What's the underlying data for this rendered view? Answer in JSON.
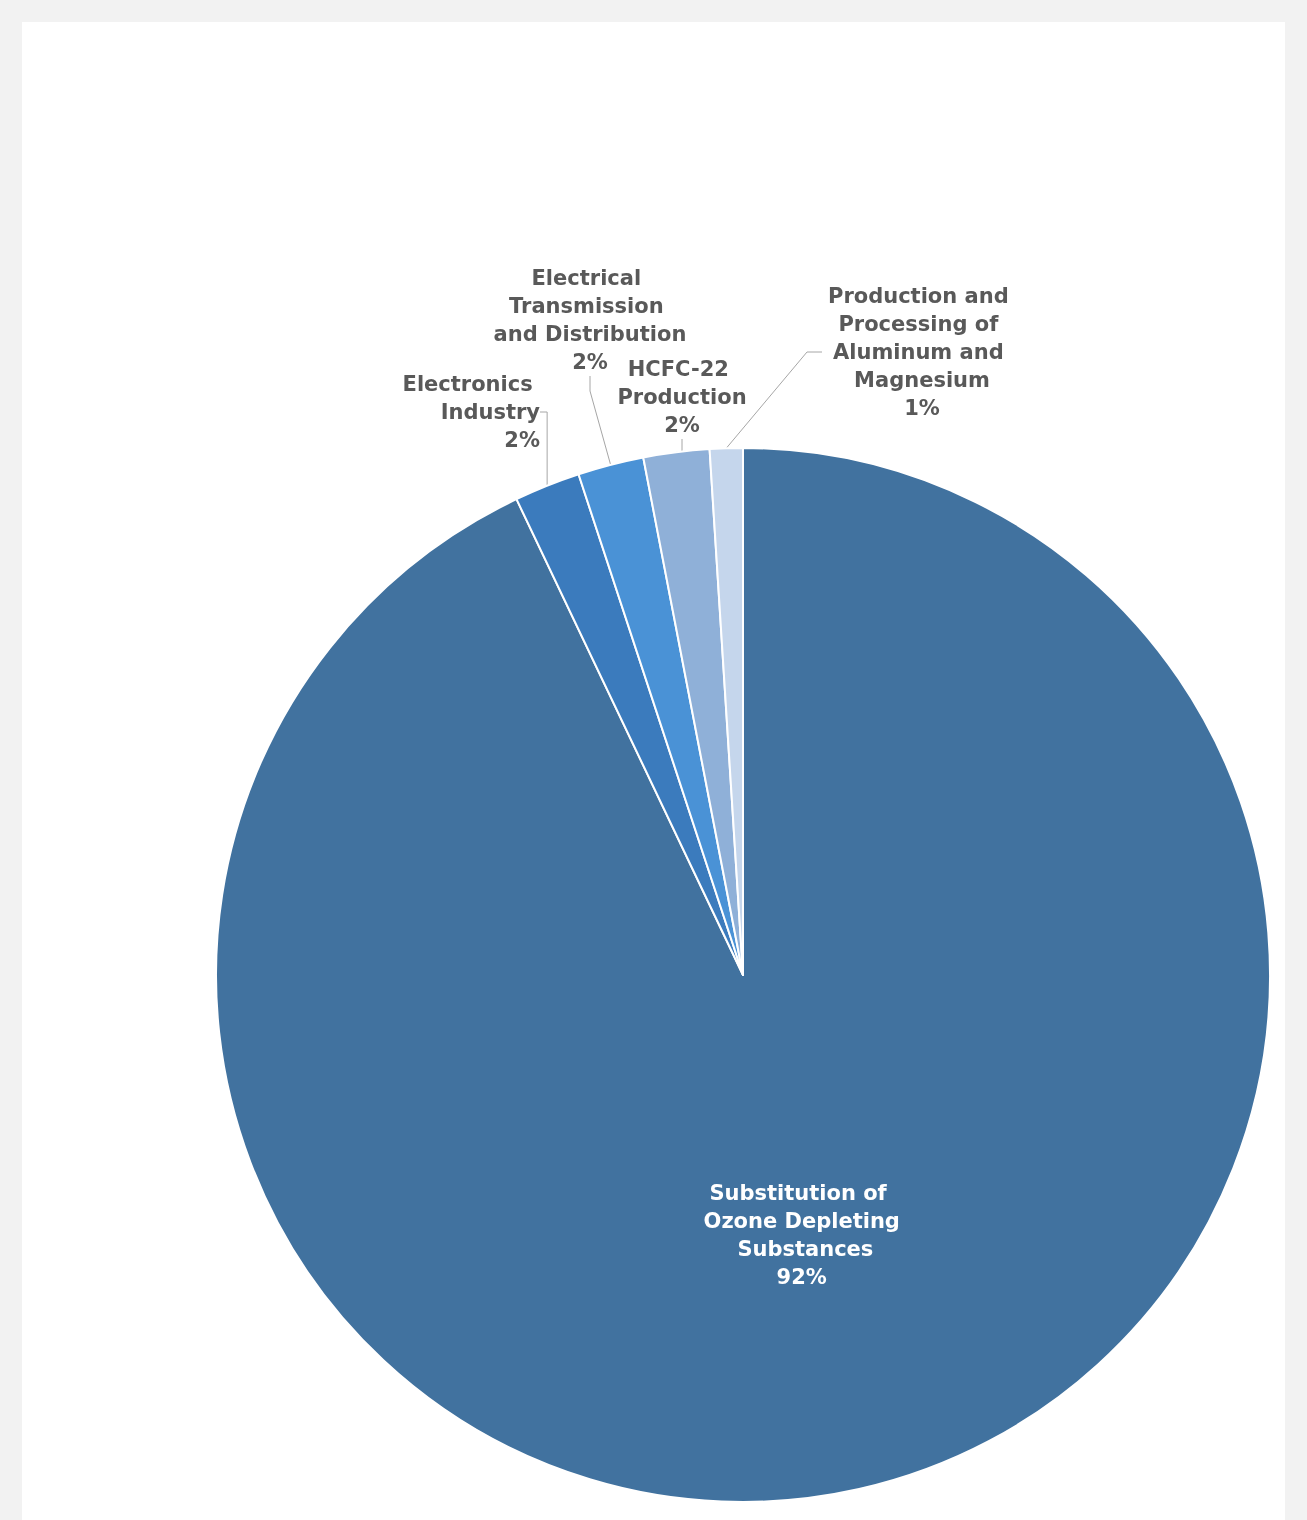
{
  "chart_data": {
    "type": "pie",
    "categories": [
      "Substitution of Ozone Depleting Substances",
      "Electronics Industry",
      "Electrical Transmission and Distribution",
      "HCFC-22 Production",
      "Production and Processing of Aluminum and Magnesium"
    ],
    "values": [
      92,
      2,
      2,
      2,
      1
    ],
    "value_labels": [
      "92%",
      "2%",
      "2%",
      "2%",
      "1%"
    ],
    "colors": [
      "#41729f",
      "#3b7bbd",
      "#4a92d6",
      "#8fb0d8",
      "#c5d6ec"
    ]
  }
}
